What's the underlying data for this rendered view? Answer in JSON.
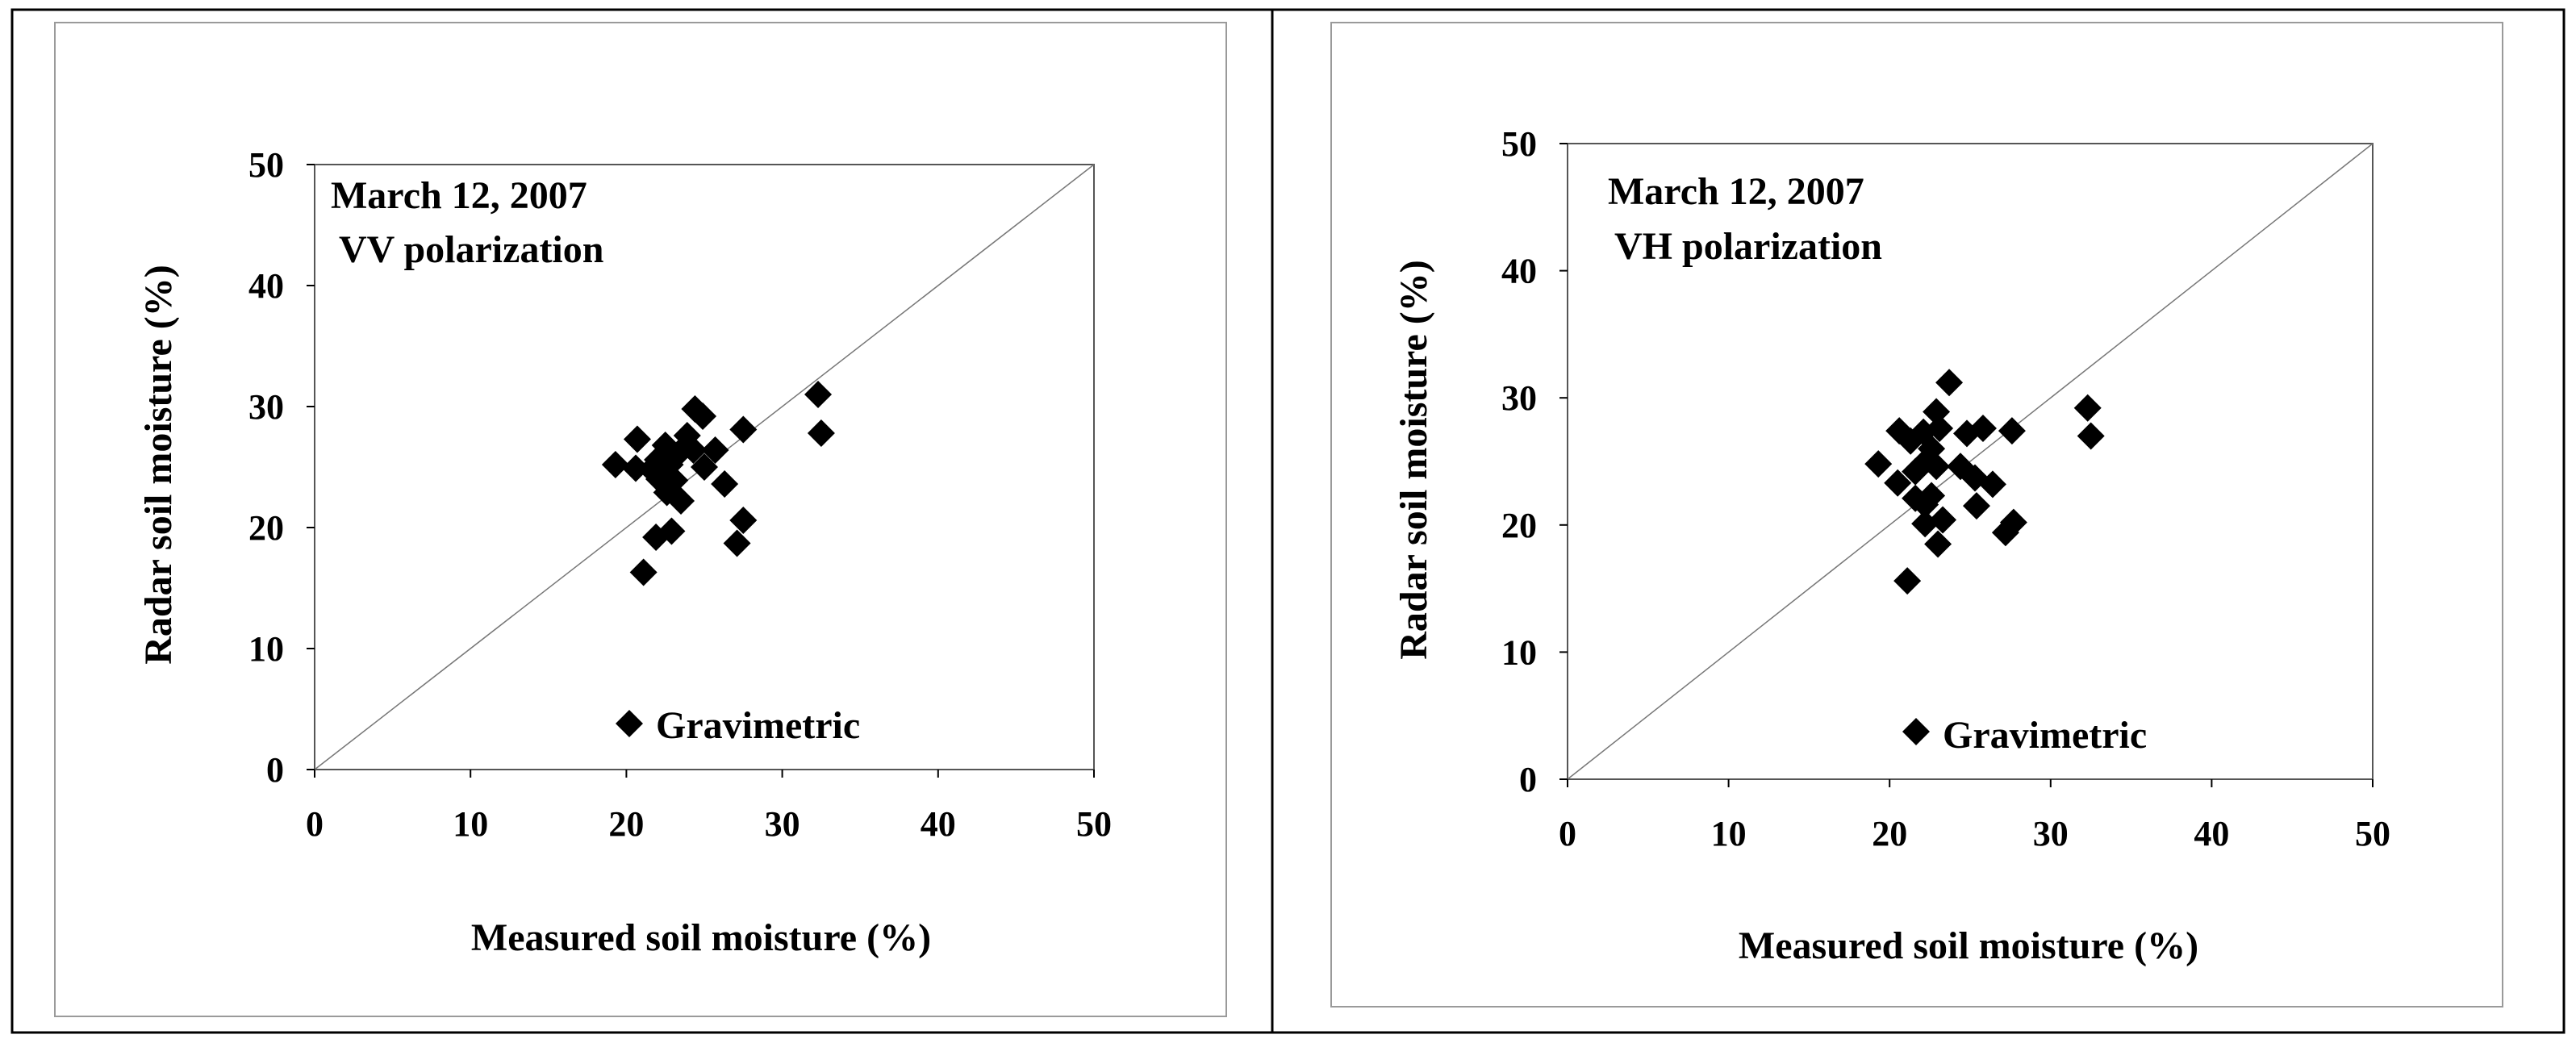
{
  "chart_data": [
    {
      "type": "scatter",
      "title": "",
      "annotation_lines": [
        "March 12, 2007",
        "VV polarization"
      ],
      "xlabel": "Measured soil moisture (%)",
      "ylabel": "Radar soil moisture (%)",
      "xlim": [
        0,
        50
      ],
      "ylim": [
        0,
        50
      ],
      "xticks": [
        "0",
        "10",
        "20",
        "30",
        "40",
        "50"
      ],
      "yticks": [
        "0",
        "10",
        "20",
        "30",
        "40",
        "50"
      ],
      "grid": false,
      "reference_line": "1:1",
      "legend": {
        "position": "bottom-center",
        "entries": [
          "Gravimetric"
        ]
      },
      "series": [
        {
          "name": "Gravimetric",
          "marker": "diamond",
          "color": "#000000",
          "points": [
            [
              19.3,
              25.2
            ],
            [
              20.7,
              27.3
            ],
            [
              20.6,
              24.9
            ],
            [
              21.6,
              24.8
            ],
            [
              22.0,
              25.6
            ],
            [
              22.5,
              26.8
            ],
            [
              22.1,
              24.0
            ],
            [
              22.8,
              25.2
            ],
            [
              23.4,
              26.2
            ],
            [
              23.9,
              27.6
            ],
            [
              24.4,
              29.8
            ],
            [
              24.9,
              29.2
            ],
            [
              24.3,
              26.4
            ],
            [
              25.0,
              25.0
            ],
            [
              25.7,
              26.4
            ],
            [
              22.6,
              22.9
            ],
            [
              23.1,
              23.9
            ],
            [
              23.5,
              22.2
            ],
            [
              22.9,
              19.7
            ],
            [
              21.9,
              19.2
            ],
            [
              21.1,
              16.3
            ],
            [
              26.3,
              23.6
            ],
            [
              27.5,
              28.1
            ],
            [
              27.5,
              20.6
            ],
            [
              27.1,
              18.7
            ],
            [
              32.3,
              31.0
            ],
            [
              32.5,
              27.8
            ]
          ]
        }
      ]
    },
    {
      "type": "scatter",
      "title": "",
      "annotation_lines": [
        "March 12, 2007",
        "VH polarization"
      ],
      "xlabel": "Measured soil moisture (%)",
      "ylabel": "Radar soil moisture (%)",
      "xlim": [
        0,
        50
      ],
      "ylim": [
        0,
        50
      ],
      "xticks": [
        "0",
        "10",
        "20",
        "30",
        "40",
        "50"
      ],
      "yticks": [
        "0",
        "10",
        "20",
        "30",
        "40",
        "50"
      ],
      "grid": false,
      "reference_line": "1:1",
      "legend": {
        "position": "bottom-center",
        "entries": [
          "Gravimetric"
        ]
      },
      "series": [
        {
          "name": "Gravimetric",
          "marker": "diamond",
          "color": "#000000",
          "points": [
            [
              19.3,
              24.8
            ],
            [
              20.6,
              27.4
            ],
            [
              20.5,
              23.3
            ],
            [
              21.3,
              26.6
            ],
            [
              21.6,
              24.2
            ],
            [
              22.1,
              27.3
            ],
            [
              22.6,
              26.0
            ],
            [
              22.9,
              28.9
            ],
            [
              23.1,
              27.6
            ],
            [
              23.7,
              31.2
            ],
            [
              22.4,
              25.2
            ],
            [
              22.9,
              24.6
            ],
            [
              21.6,
              22.1
            ],
            [
              22.2,
              21.6
            ],
            [
              22.6,
              22.3
            ],
            [
              22.2,
              20.1
            ],
            [
              23.3,
              20.4
            ],
            [
              23.0,
              18.5
            ],
            [
              21.1,
              15.6
            ],
            [
              24.4,
              24.6
            ],
            [
              24.8,
              27.2
            ],
            [
              25.3,
              23.7
            ],
            [
              25.8,
              27.6
            ],
            [
              26.4,
              23.2
            ],
            [
              25.4,
              21.5
            ],
            [
              27.2,
              19.4
            ],
            [
              27.7,
              20.2
            ],
            [
              27.6,
              27.4
            ],
            [
              32.3,
              29.2
            ],
            [
              32.5,
              27.0
            ]
          ]
        }
      ]
    }
  ]
}
